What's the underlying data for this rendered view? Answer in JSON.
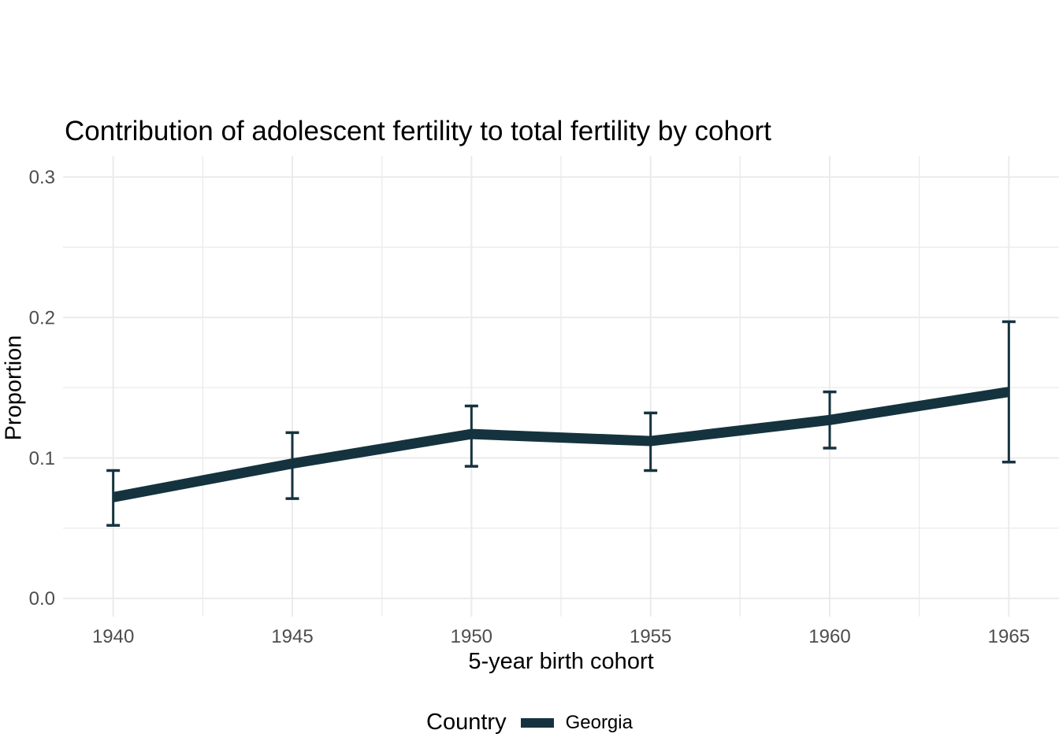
{
  "chart_data": {
    "type": "line",
    "title": "Contribution of adolescent fertility to total fertility by cohort",
    "xlabel": "5-year birth cohort",
    "ylabel": "Proportion",
    "legend_title": "Country",
    "legend_position": "bottom",
    "grid": true,
    "x": [
      1940,
      1945,
      1950,
      1955,
      1960,
      1965
    ],
    "xtick_labels": [
      "1940",
      "1945",
      "1950",
      "1955",
      "1960",
      "1965"
    ],
    "xlim": [
      1938.6,
      1966.4
    ],
    "yticks": [
      0,
      0.1,
      0.2,
      0.3
    ],
    "ytick_labels": [
      "0.0",
      "0.1",
      "0.2",
      "0.3"
    ],
    "minor_yticks": [
      0.05,
      0.15,
      0.25
    ],
    "ylim": [
      -0.013,
      0.315
    ],
    "series": [
      {
        "name": "Georgia",
        "color": "#15333E",
        "values": [
          0.072,
          0.096,
          0.117,
          0.112,
          0.127,
          0.147
        ],
        "ci_lower": [
          0.052,
          0.071,
          0.094,
          0.091,
          0.107,
          0.097
        ],
        "ci_upper": [
          0.091,
          0.118,
          0.137,
          0.132,
          0.147,
          0.197
        ]
      }
    ]
  },
  "colors": {
    "accent": "#15333E",
    "gridline": "#EBEBEB",
    "tick_text": "#4D4D4D",
    "title_text": "#000000",
    "background": "#FFFFFF"
  }
}
